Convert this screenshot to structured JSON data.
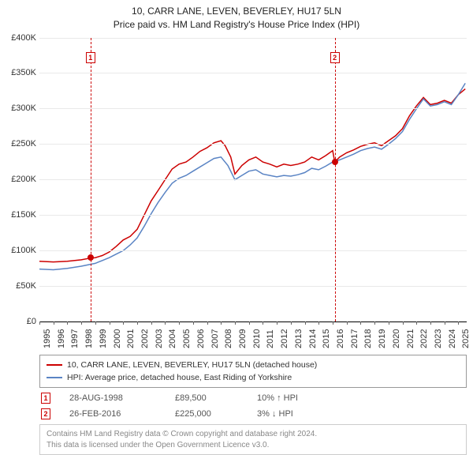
{
  "title_line1": "10, CARR LANE, LEVEN, BEVERLEY, HU17 5LN",
  "title_line2": "Price paid vs. HM Land Registry's House Price Index (HPI)",
  "title_fontsize": 12,
  "chart": {
    "type": "line",
    "background_color": "#ffffff",
    "grid_color": "#e9e9e9",
    "x_domain": [
      1995,
      2025.6
    ],
    "y_domain": [
      0,
      400000
    ],
    "y_ticks": [
      0,
      50000,
      100000,
      150000,
      200000,
      250000,
      300000,
      350000,
      400000
    ],
    "y_tick_labels": [
      "£0",
      "£50K",
      "£100K",
      "£150K",
      "£200K",
      "£250K",
      "£300K",
      "£350K",
      "£400K"
    ],
    "x_ticks": [
      1995,
      1996,
      1997,
      1998,
      1999,
      2000,
      2001,
      2002,
      2003,
      2004,
      2005,
      2006,
      2007,
      2008,
      2009,
      2010,
      2011,
      2012,
      2013,
      2014,
      2015,
      2016,
      2017,
      2018,
      2019,
      2020,
      2021,
      2022,
      2023,
      2024,
      2025
    ],
    "series": [
      {
        "name": "price_paid",
        "color": "#cc0000",
        "line_width": 1.5,
        "legend_label": "10, CARR LANE, LEVEN, BEVERLEY, HU17 5LN (detached house)",
        "points": [
          [
            1995.0,
            85000
          ],
          [
            1996.0,
            84000
          ],
          [
            1997.0,
            85000
          ],
          [
            1998.0,
            87000
          ],
          [
            1998.66,
            89500
          ],
          [
            1999.0,
            90000
          ],
          [
            1999.5,
            93000
          ],
          [
            2000.0,
            98000
          ],
          [
            2000.5,
            106000
          ],
          [
            2001.0,
            115000
          ],
          [
            2001.5,
            120000
          ],
          [
            2002.0,
            130000
          ],
          [
            2002.5,
            150000
          ],
          [
            2003.0,
            170000
          ],
          [
            2003.5,
            185000
          ],
          [
            2004.0,
            200000
          ],
          [
            2004.5,
            215000
          ],
          [
            2005.0,
            222000
          ],
          [
            2005.5,
            225000
          ],
          [
            2006.0,
            232000
          ],
          [
            2006.5,
            240000
          ],
          [
            2007.0,
            245000
          ],
          [
            2007.5,
            252000
          ],
          [
            2008.0,
            255000
          ],
          [
            2008.3,
            248000
          ],
          [
            2008.7,
            232000
          ],
          [
            2009.0,
            208000
          ],
          [
            2009.5,
            220000
          ],
          [
            2010.0,
            228000
          ],
          [
            2010.5,
            232000
          ],
          [
            2011.0,
            225000
          ],
          [
            2011.5,
            222000
          ],
          [
            2012.0,
            218000
          ],
          [
            2012.5,
            222000
          ],
          [
            2013.0,
            220000
          ],
          [
            2013.5,
            222000
          ],
          [
            2014.0,
            225000
          ],
          [
            2014.5,
            232000
          ],
          [
            2015.0,
            228000
          ],
          [
            2015.5,
            234000
          ],
          [
            2016.0,
            241000
          ],
          [
            2016.15,
            225000
          ],
          [
            2016.5,
            232000
          ],
          [
            2017.0,
            238000
          ],
          [
            2017.5,
            242000
          ],
          [
            2018.0,
            247000
          ],
          [
            2018.5,
            250000
          ],
          [
            2019.0,
            252000
          ],
          [
            2019.5,
            248000
          ],
          [
            2020.0,
            255000
          ],
          [
            2020.5,
            262000
          ],
          [
            2021.0,
            272000
          ],
          [
            2021.5,
            290000
          ],
          [
            2022.0,
            304000
          ],
          [
            2022.5,
            316000
          ],
          [
            2023.0,
            306000
          ],
          [
            2023.5,
            308000
          ],
          [
            2024.0,
            312000
          ],
          [
            2024.5,
            308000
          ],
          [
            2025.0,
            320000
          ],
          [
            2025.5,
            328000
          ]
        ]
      },
      {
        "name": "hpi",
        "color": "#5a84c4",
        "line_width": 1.5,
        "legend_label": "HPI: Average price, detached house, East Riding of Yorkshire",
        "points": [
          [
            1995.0,
            74000
          ],
          [
            1996.0,
            73000
          ],
          [
            1997.0,
            75000
          ],
          [
            1998.0,
            78000
          ],
          [
            1999.0,
            82000
          ],
          [
            2000.0,
            90000
          ],
          [
            2000.5,
            95000
          ],
          [
            2001.0,
            100000
          ],
          [
            2001.5,
            108000
          ],
          [
            2002.0,
            118000
          ],
          [
            2002.5,
            134000
          ],
          [
            2003.0,
            152000
          ],
          [
            2003.5,
            168000
          ],
          [
            2004.0,
            182000
          ],
          [
            2004.5,
            195000
          ],
          [
            2005.0,
            202000
          ],
          [
            2005.5,
            206000
          ],
          [
            2006.0,
            212000
          ],
          [
            2006.5,
            218000
          ],
          [
            2007.0,
            224000
          ],
          [
            2007.5,
            230000
          ],
          [
            2008.0,
            232000
          ],
          [
            2008.5,
            220000
          ],
          [
            2009.0,
            200000
          ],
          [
            2009.5,
            206000
          ],
          [
            2010.0,
            212000
          ],
          [
            2010.5,
            214000
          ],
          [
            2011.0,
            208000
          ],
          [
            2011.5,
            206000
          ],
          [
            2012.0,
            204000
          ],
          [
            2012.5,
            206000
          ],
          [
            2013.0,
            205000
          ],
          [
            2013.5,
            207000
          ],
          [
            2014.0,
            210000
          ],
          [
            2014.5,
            216000
          ],
          [
            2015.0,
            214000
          ],
          [
            2015.5,
            219000
          ],
          [
            2016.0,
            225000
          ],
          [
            2016.5,
            228000
          ],
          [
            2017.0,
            232000
          ],
          [
            2017.5,
            236000
          ],
          [
            2018.0,
            241000
          ],
          [
            2018.5,
            244000
          ],
          [
            2019.0,
            246000
          ],
          [
            2019.5,
            243000
          ],
          [
            2020.0,
            250000
          ],
          [
            2020.5,
            258000
          ],
          [
            2021.0,
            268000
          ],
          [
            2021.5,
            285000
          ],
          [
            2022.0,
            300000
          ],
          [
            2022.5,
            314000
          ],
          [
            2023.0,
            304000
          ],
          [
            2023.5,
            306000
          ],
          [
            2024.0,
            310000
          ],
          [
            2024.5,
            306000
          ],
          [
            2025.0,
            320000
          ],
          [
            2025.5,
            336000
          ]
        ]
      }
    ],
    "markers": [
      {
        "n": "1",
        "x": 1998.66,
        "y": 89500,
        "dot_color": "#cc0000"
      },
      {
        "n": "2",
        "x": 2016.15,
        "y": 225000,
        "dot_color": "#cc0000"
      }
    ],
    "marker_box_top_offset": 18
  },
  "sales": [
    {
      "n": "1",
      "date": "28-AUG-1998",
      "price": "£89,500",
      "pct": "10%",
      "arrow": "↑",
      "vs": "HPI"
    },
    {
      "n": "2",
      "date": "26-FEB-2016",
      "price": "£225,000",
      "pct": "3%",
      "arrow": "↓",
      "vs": "HPI"
    }
  ],
  "license_line1": "Contains HM Land Registry data © Crown copyright and database right 2024.",
  "license_line2": "This data is licensed under the Open Government Licence v3.0."
}
